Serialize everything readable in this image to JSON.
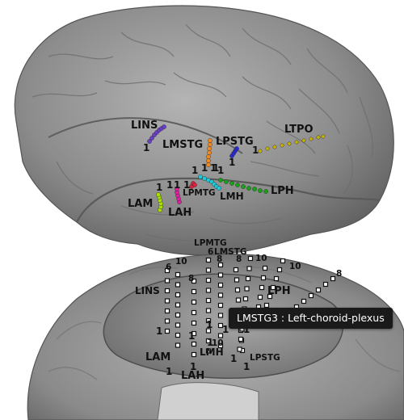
{
  "lateral_view": {
    "labels": {
      "lins": "LINS",
      "lmstg": "LMSTG",
      "lpstg": "LPSTG",
      "ltpo": "LTPO",
      "lam": "LAM",
      "lah": "LAH",
      "lpmtg": "LPMTG",
      "lmh": "LMH",
      "lph": "LPH"
    },
    "contact_numbers": {
      "lins_1": "1",
      "lmstg_1": "1",
      "lpstg_1": "1",
      "ltpo_1": "1",
      "lam_1": "1",
      "lah_1": "1",
      "lpmtg_1a": "1",
      "lpmtg_1b": "1",
      "lmh_1": "1",
      "lph_1a": "1",
      "lph_1b": "1",
      "lph_1c": "1"
    },
    "electrode_colors": {
      "lins": "#6a3fc8",
      "lmstg": "#f08a1e",
      "lpstg": "#2a2ad0",
      "ltpo": "#c8b400",
      "lam": "#a8e000",
      "lah": "#e020a0",
      "lpmtg": "#e02040",
      "lmh": "#20c8d8",
      "lph": "#18a018"
    }
  },
  "medial_view": {
    "labels": {
      "lpmtg": "LPMTG",
      "lmstg": "LMSTG",
      "lins": "LINS",
      "lph": "LPH",
      "lmh": "LMH",
      "lam": "LAM",
      "lah": "LAH",
      "lpstg": "LPSTG"
    },
    "numbers": {
      "n6a": "6",
      "n8a": "8",
      "n10a": "10",
      "n6b": "6",
      "n10b": "10",
      "n8b": "8",
      "n8c": "8",
      "n10c": "10",
      "n8d": "8",
      "n1a": "1",
      "n1b": "1",
      "n1c": "1",
      "n1d": "1",
      "n1e": "1",
      "n1f": "1",
      "n10d": "10",
      "n1g": "1",
      "n1h": "1",
      "n1i": "1",
      "n1j": "1"
    }
  },
  "tooltip": {
    "text": "LMSTG3 : Left-choroid-plexus"
  }
}
